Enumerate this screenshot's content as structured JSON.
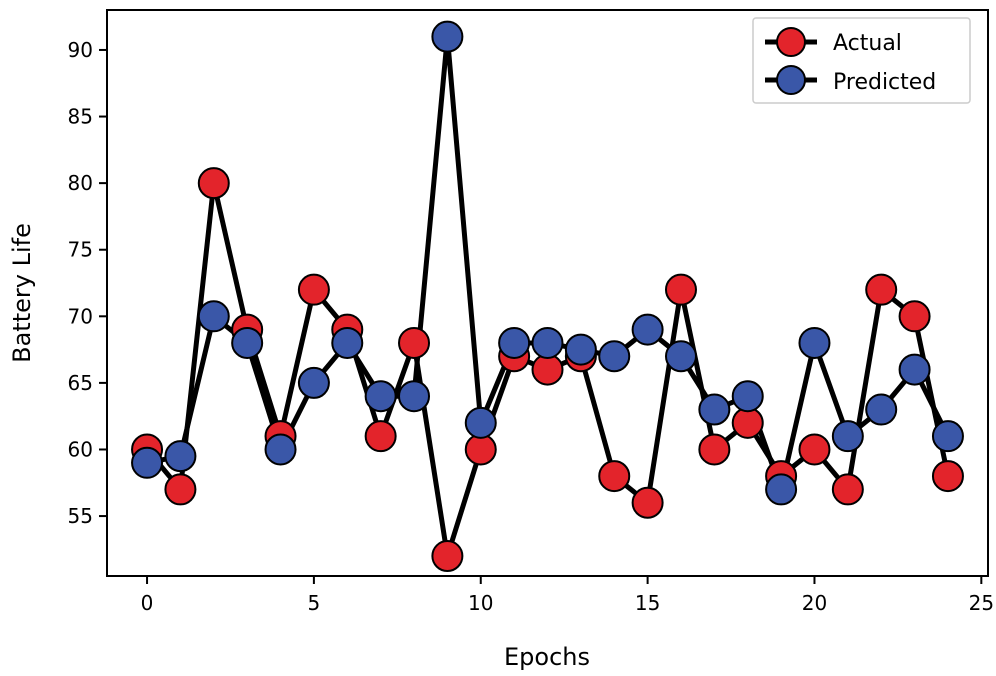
{
  "chart_data": {
    "type": "line",
    "title": "",
    "xlabel": "Epochs",
    "ylabel": "Battery Life",
    "xlim": [
      -1.2,
      25.2
    ],
    "ylim": [
      50.5,
      93
    ],
    "xticks": [
      0,
      5,
      10,
      15,
      20,
      25
    ],
    "yticks": [
      55,
      60,
      65,
      70,
      75,
      80,
      85,
      90
    ],
    "grid": false,
    "legend_position": "top-right",
    "x": [
      0,
      1,
      2,
      3,
      4,
      5,
      6,
      7,
      8,
      9,
      10,
      11,
      12,
      13,
      14,
      15,
      16,
      17,
      18,
      19,
      20,
      21,
      22,
      23,
      24
    ],
    "series": [
      {
        "name": "Actual",
        "color": "#e3242b",
        "values": [
          60,
          57,
          80,
          69,
          61,
          72,
          69,
          61,
          68,
          52,
          60,
          67,
          66,
          67,
          58,
          56,
          72,
          60,
          62,
          58,
          60,
          57,
          72,
          70,
          58
        ]
      },
      {
        "name": "Predicted",
        "color": "#3a57a8",
        "values": [
          59,
          59.5,
          70,
          68,
          60,
          65,
          68,
          64,
          64,
          91,
          62,
          68,
          68,
          67.5,
          67,
          69,
          67,
          63,
          64,
          57,
          68,
          61,
          63,
          66,
          61
        ]
      }
    ]
  }
}
